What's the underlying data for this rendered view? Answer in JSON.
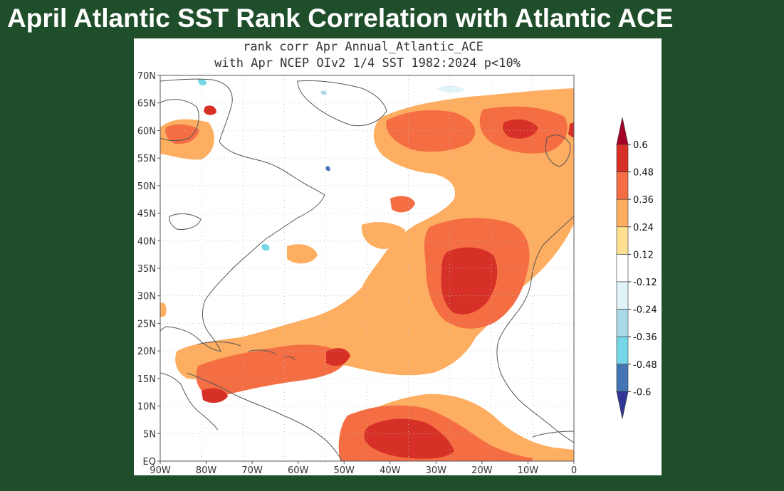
{
  "slide": {
    "title": "April Atlantic SST Rank Correlation with Atlantic ACE"
  },
  "map": {
    "title_line1": "rank corr Apr  Annual_Atlantic_ACE",
    "title_line2": "with Apr NCEP OIv2 1/4 SST 1982:2024 p<10%",
    "lat_labels": [
      "70N",
      "65N",
      "60N",
      "55N",
      "50N",
      "45N",
      "40N",
      "35N",
      "30N",
      "25N",
      "20N",
      "15N",
      "10N",
      "5N",
      "EQ"
    ],
    "lon_labels": [
      "90W",
      "80W",
      "70W",
      "60W",
      "50W",
      "40W",
      "30W",
      "20W",
      "10W",
      "0"
    ],
    "lat_values": [
      70,
      65,
      60,
      55,
      50,
      45,
      40,
      35,
      30,
      25,
      20,
      15,
      10,
      5,
      0
    ],
    "lon_values": [
      -90,
      -80,
      -70,
      -60,
      -50,
      -40,
      -30,
      -20,
      -10,
      0
    ],
    "lat_range": [
      0,
      70
    ],
    "lon_range": [
      -90,
      0
    ]
  },
  "colorbar": {
    "labels": [
      "0.6",
      "0.48",
      "0.36",
      "0.24",
      "0.12",
      "-0.12",
      "-0.24",
      "-0.36",
      "-0.48",
      "-0.6"
    ],
    "colors": {
      "gt_0_6": "#a50026",
      "c_0_48_0_6": "#d73027",
      "c_0_36_0_48": "#f46d43",
      "c_0_24_0_36": "#fdae61",
      "c_0_12_0_24": "#fee090",
      "neutral": "#ffffff",
      "c_n0_24_n0_12": "#e0f3f8",
      "c_n0_36_n0_24": "#abd9e9",
      "c_n0_48_n0_36": "#74d6e6",
      "c_n0_6_n0_48": "#4575b4",
      "lt_n0_6": "#313695"
    }
  },
  "colors": {
    "page_background": "#1f4e2b",
    "title_text": "#ffffff",
    "coastline": "#555555"
  }
}
